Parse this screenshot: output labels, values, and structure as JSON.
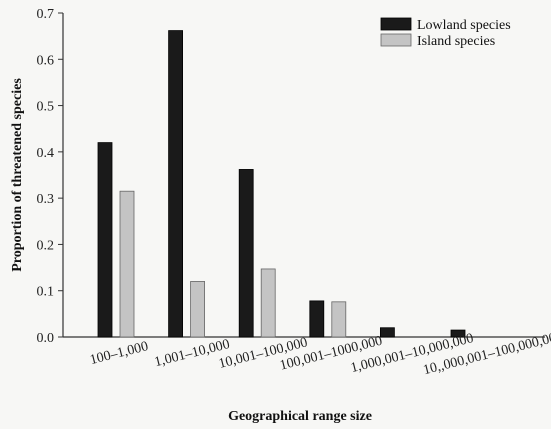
{
  "chart_data": {
    "type": "bar",
    "xlabel": "Geographical range size",
    "ylabel": "Proportion of threatened species",
    "ylim": [
      0,
      0.7
    ],
    "yticks": [
      "0.0",
      "0.1",
      "0.2",
      "0.3",
      "0.4",
      "0.5",
      "0.6",
      "0.7"
    ],
    "categories": [
      "100–1,000",
      "1,001–10,000",
      "10,001–100,000",
      "100,001–1000,000",
      "1,000,001–10,000,000",
      "10,,000,001–100,000,000"
    ],
    "series": [
      {
        "name": "Lowland species",
        "color": "#1a1a1a",
        "values": [
          0.42,
          0.662,
          0.362,
          0.078,
          0.02,
          0.015
        ]
      },
      {
        "name": "Island species",
        "color": "#c4c4c4",
        "values": [
          0.315,
          0.12,
          0.147,
          0.076,
          null,
          null
        ]
      }
    ],
    "legend_position": "top-right",
    "grid": false
  }
}
